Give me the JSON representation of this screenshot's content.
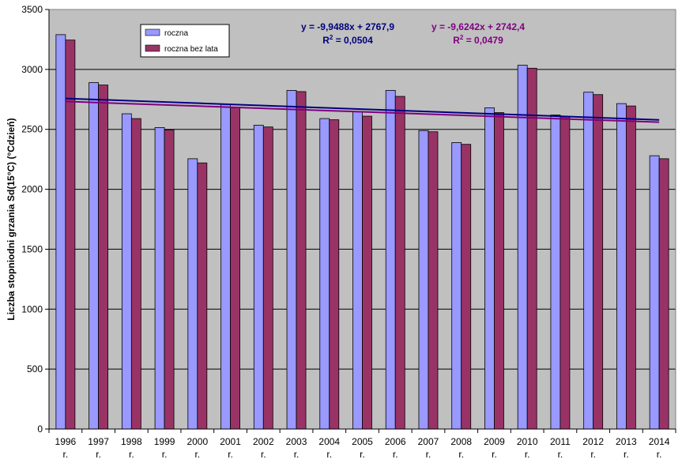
{
  "chart_data": {
    "type": "bar",
    "ylabel": "Liczba stopniodni grzania Sd(15°C) (°Cdzień)",
    "ylim": [
      0,
      3500
    ],
    "yticks": [
      0,
      500,
      1000,
      1500,
      2000,
      2500,
      3000,
      3500
    ],
    "grid": true,
    "background_color": "#c0c0c0",
    "categories": [
      "1996",
      "1997",
      "1998",
      "1999",
      "2000",
      "2001",
      "2002",
      "2003",
      "2004",
      "2005",
      "2006",
      "2007",
      "2008",
      "2009",
      "2010",
      "2011",
      "2012",
      "2013",
      "2014"
    ],
    "category_suffix": "r.",
    "series": [
      {
        "name": "roczna",
        "color": "#9999ff",
        "values": [
          3290,
          2890,
          2630,
          2515,
          2255,
          2710,
          2535,
          2825,
          2590,
          2650,
          2825,
          2490,
          2390,
          2680,
          3035,
          2620,
          2810,
          2715,
          2280
        ]
      },
      {
        "name": "roczna bez lata",
        "color": "#993366",
        "values": [
          3245,
          2870,
          2590,
          2495,
          2220,
          2680,
          2520,
          2815,
          2580,
          2610,
          2775,
          2480,
          2375,
          2640,
          3010,
          2605,
          2790,
          2695,
          2255
        ]
      }
    ],
    "trendlines": [
      {
        "series": "roczna",
        "slope": -9.9488,
        "intercept": 2767.9,
        "color": "#000080",
        "equation": "y = -9,9488x + 2767,9",
        "r2_prefix": "R",
        "r2_exp": "2",
        "r2_value": " = 0,0504"
      },
      {
        "series": "roczna bez lata",
        "slope": -9.6242,
        "intercept": 2742.4,
        "color": "#800080",
        "equation": "y = -9,6242x + 2742,4",
        "r2_prefix": "R",
        "r2_exp": "2",
        "r2_value": " = 0,0479"
      }
    ],
    "legend_position": "top-left"
  }
}
